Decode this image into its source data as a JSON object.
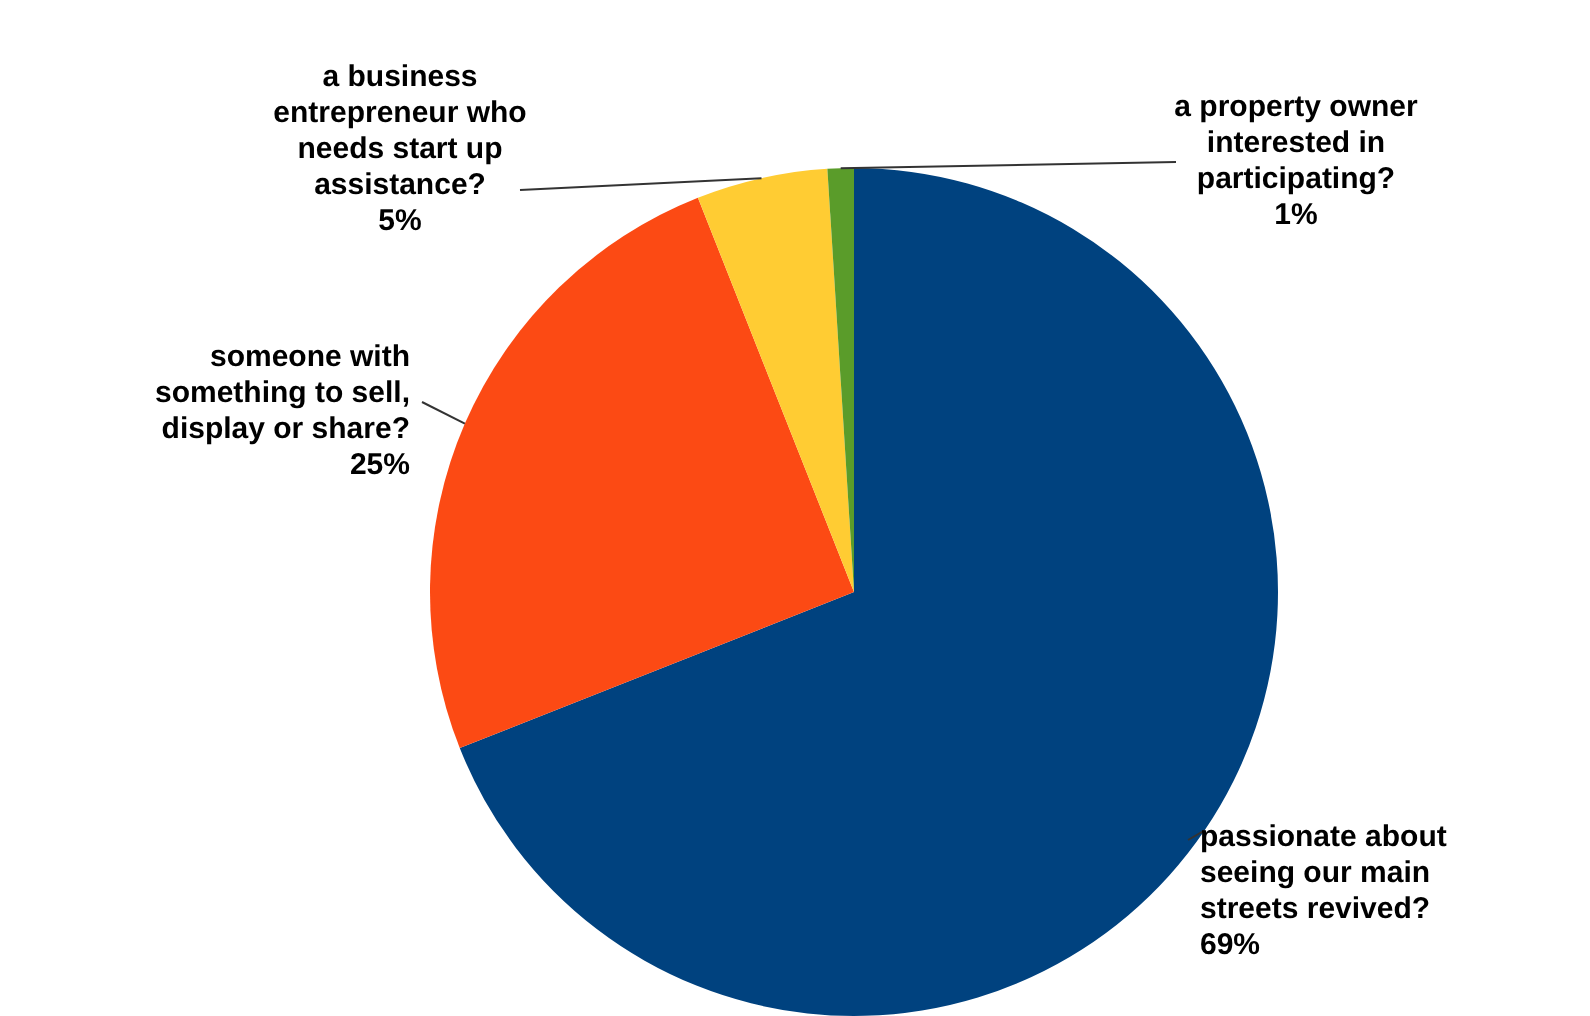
{
  "chart_data": {
    "type": "pie",
    "categories": [
      "passionate about seeing our main streets revived?",
      "someone with something to sell, display or share?",
      "a business entrepreneur who needs start up assistance?",
      "a property owner interested in participating?"
    ],
    "values": [
      69,
      25,
      5,
      1
    ],
    "colors": [
      "#00427f",
      "#fc4a14",
      "#ffcc33",
      "#5a9c2a"
    ],
    "value_labels": [
      "69%",
      "25%",
      "5%",
      "1%"
    ],
    "legend": false
  }
}
